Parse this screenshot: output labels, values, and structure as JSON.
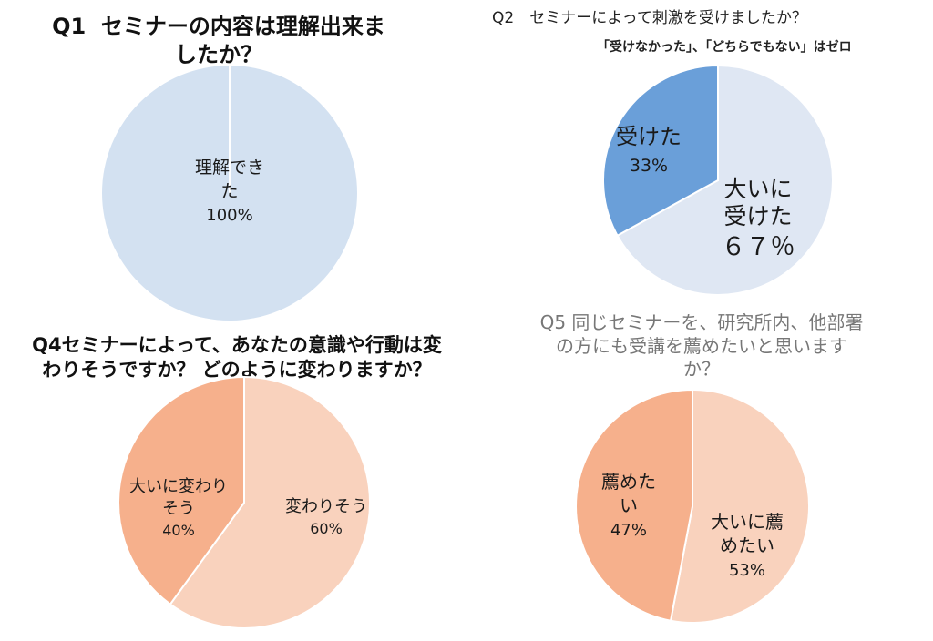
{
  "chart_data": [
    {
      "id": "q1",
      "type": "pie",
      "title_num": "Q1",
      "title_lines": [
        "セミナーの内容は理解出来ま",
        "したか？"
      ],
      "slices": [
        {
          "label_lines": [
            "理解でき",
            "た"
          ],
          "value": 100,
          "value_label": "100%",
          "color": "#d3e1f1"
        }
      ]
    },
    {
      "id": "q2",
      "type": "pie",
      "title": "Q2　セミナーによって刺激を受けましたか？",
      "note": "「受けなかった」、「どちらでもない」はゼロ",
      "slices": [
        {
          "label_lines": [
            "大いに",
            "受けた"
          ],
          "value": 67,
          "value_label": "６７％",
          "color": "#dfe7f3"
        },
        {
          "label_lines": [
            "受けた"
          ],
          "value": 33,
          "value_label": "33%",
          "color": "#6a9fd9"
        }
      ]
    },
    {
      "id": "q4",
      "type": "pie",
      "title_lines": [
        "Q4セミナーによって、あなたの意識や行動は変",
        "わりそうですか？ どのように変わりますか？"
      ],
      "slices": [
        {
          "label_lines": [
            "変わりそう"
          ],
          "value": 60,
          "value_label": "60%",
          "color": "#f9d2bd"
        },
        {
          "label_lines": [
            "大いに変わり",
            "そう"
          ],
          "value": 40,
          "value_label": "40%",
          "color": "#f6b08c"
        }
      ]
    },
    {
      "id": "q5",
      "type": "pie",
      "title_lines": [
        "Q5 同じセミナーを、研究所内、他部署",
        "の方にも受講を薦めたいと思います",
        "か？"
      ],
      "slices": [
        {
          "label_lines": [
            "大いに薦",
            "めたい"
          ],
          "value": 53,
          "value_label": "53%",
          "color": "#f9d2bd"
        },
        {
          "label_lines": [
            "薦めた",
            "い"
          ],
          "value": 47,
          "value_label": "47%",
          "color": "#f6b08c"
        }
      ]
    }
  ]
}
